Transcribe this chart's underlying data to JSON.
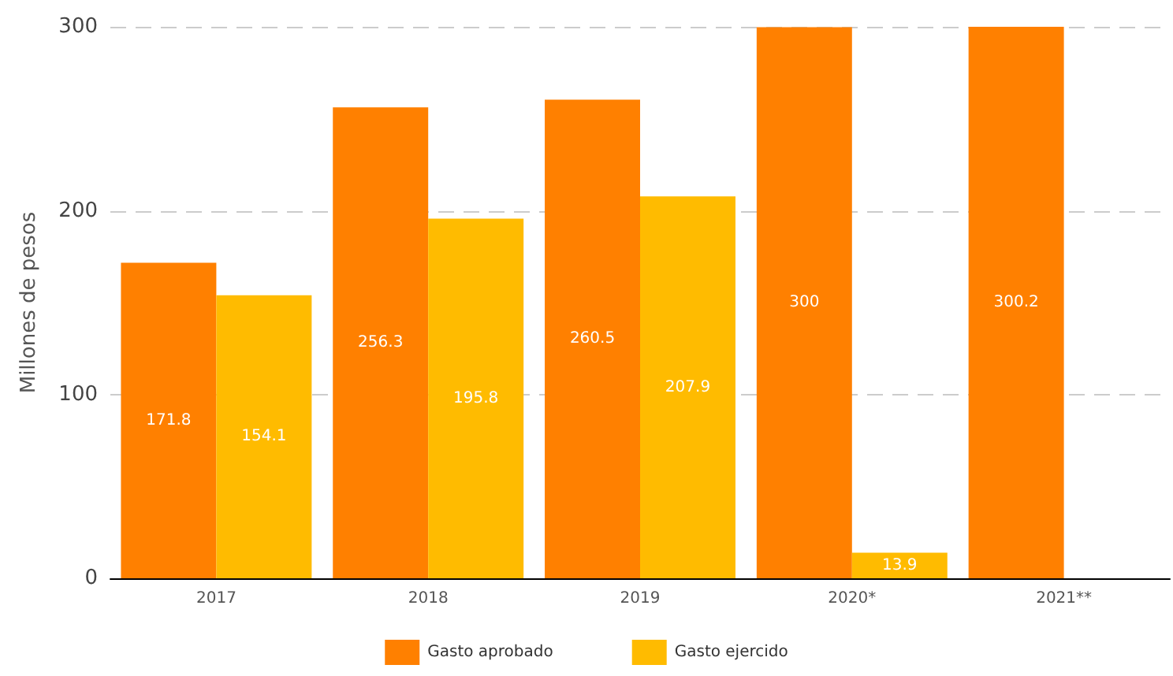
{
  "chart_data": {
    "type": "bar",
    "ylabel": "Millones de pesos",
    "categories": [
      "2017",
      "2018",
      "2019",
      "2020*",
      "2021**"
    ],
    "series": [
      {
        "name": "Gasto aprobado",
        "color": "#ff8000",
        "values": [
          171.8,
          256.3,
          260.5,
          300,
          300.2
        ]
      },
      {
        "name": "Gasto ejercido",
        "color": "#ffbb00",
        "values": [
          154.1,
          195.8,
          207.9,
          13.9,
          null
        ]
      }
    ],
    "ylim": [
      0,
      300.2
    ],
    "yticks": [
      0,
      100,
      200,
      300
    ],
    "grid": "y",
    "legend": "bottom",
    "data_labels": true
  }
}
